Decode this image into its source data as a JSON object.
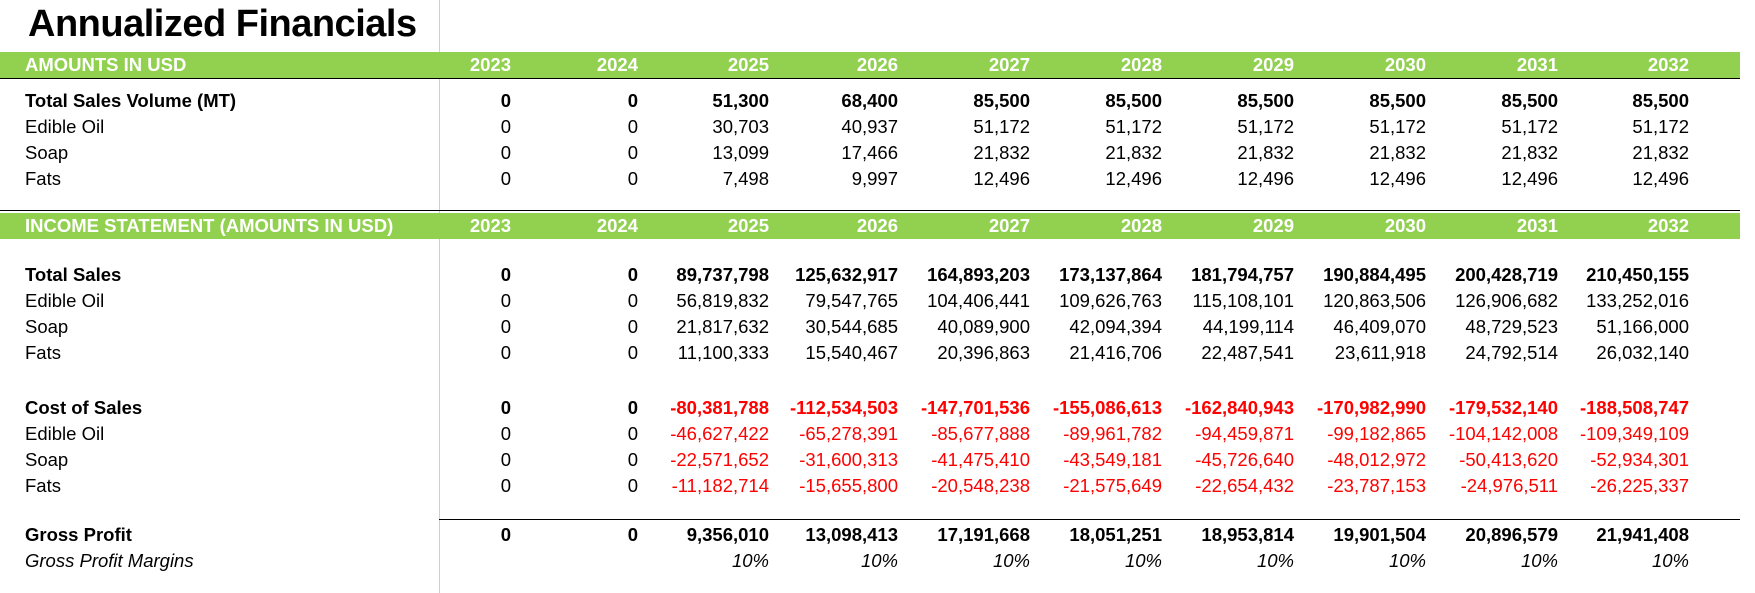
{
  "title": "Annualized Financials",
  "years": [
    "2023",
    "2024",
    "2025",
    "2026",
    "2027",
    "2028",
    "2029",
    "2030",
    "2031",
    "2032"
  ],
  "section1": {
    "header": "AMOUNTS IN USD",
    "rows": [
      {
        "label": "Total Sales Volume (MT)",
        "style": "bold",
        "values": [
          "0",
          "0",
          "51,300",
          "68,400",
          "85,500",
          "85,500",
          "85,500",
          "85,500",
          "85,500",
          "85,500"
        ]
      },
      {
        "label": "Edible Oil",
        "style": "normal",
        "values": [
          "0",
          "0",
          "30,703",
          "40,937",
          "51,172",
          "51,172",
          "51,172",
          "51,172",
          "51,172",
          "51,172"
        ]
      },
      {
        "label": "Soap",
        "style": "normal",
        "values": [
          "0",
          "0",
          "13,099",
          "17,466",
          "21,832",
          "21,832",
          "21,832",
          "21,832",
          "21,832",
          "21,832"
        ]
      },
      {
        "label": "Fats",
        "style": "normal",
        "values": [
          "0",
          "0",
          "7,498",
          "9,997",
          "12,496",
          "12,496",
          "12,496",
          "12,496",
          "12,496",
          "12,496"
        ]
      }
    ]
  },
  "section2": {
    "header": "INCOME STATEMENT (AMOUNTS IN USD)",
    "rows": [
      {
        "label": "Total Sales",
        "style": "bold",
        "values": [
          "0",
          "0",
          "89,737,798",
          "125,632,917",
          "164,893,203",
          "173,137,864",
          "181,794,757",
          "190,884,495",
          "200,428,719",
          "210,450,155"
        ]
      },
      {
        "label": "Edible Oil",
        "style": "normal",
        "values": [
          "0",
          "0",
          "56,819,832",
          "79,547,765",
          "104,406,441",
          "109,626,763",
          "115,108,101",
          "120,863,506",
          "126,906,682",
          "133,252,016"
        ]
      },
      {
        "label": "Soap",
        "style": "normal",
        "values": [
          "0",
          "0",
          "21,817,632",
          "30,544,685",
          "40,089,900",
          "42,094,394",
          "44,199,114",
          "46,409,070",
          "48,729,523",
          "51,166,000"
        ]
      },
      {
        "label": "Fats",
        "style": "normal",
        "values": [
          "0",
          "0",
          "11,100,333",
          "15,540,467",
          "20,396,863",
          "21,416,706",
          "22,487,541",
          "23,611,918",
          "24,792,514",
          "26,032,140"
        ]
      },
      {
        "label": "Cost of Sales",
        "style": "bold-red",
        "values": [
          "0",
          "0",
          "-80,381,788",
          "-112,534,503",
          "-147,701,536",
          "-155,086,613",
          "-162,840,943",
          "-170,982,990",
          "-179,532,140",
          "-188,508,747"
        ]
      },
      {
        "label": "Edible Oil",
        "style": "red",
        "values": [
          "0",
          "0",
          "-46,627,422",
          "-65,278,391",
          "-85,677,888",
          "-89,961,782",
          "-94,459,871",
          "-99,182,865",
          "-104,142,008",
          "-109,349,109"
        ]
      },
      {
        "label": "Soap",
        "style": "red",
        "values": [
          "0",
          "0",
          "-22,571,652",
          "-31,600,313",
          "-41,475,410",
          "-43,549,181",
          "-45,726,640",
          "-48,012,972",
          "-50,413,620",
          "-52,934,301"
        ]
      },
      {
        "label": "Fats",
        "style": "red",
        "values": [
          "0",
          "0",
          "-11,182,714",
          "-15,655,800",
          "-20,548,238",
          "-21,575,649",
          "-22,654,432",
          "-23,787,153",
          "-24,976,511",
          "-26,225,337"
        ]
      },
      {
        "label": "Gross Profit",
        "style": "bold",
        "values": [
          "0",
          "0",
          "9,356,010",
          "13,098,413",
          "17,191,668",
          "18,051,251",
          "18,953,814",
          "19,901,504",
          "20,896,579",
          "21,941,408"
        ]
      },
      {
        "label": "Gross Profit Margins",
        "style": "italic",
        "values": [
          "",
          "",
          "10%",
          "10%",
          "10%",
          "10%",
          "10%",
          "10%",
          "10%",
          "10%"
        ]
      }
    ]
  },
  "colors": {
    "band": "#92d050",
    "band_text": "#ffffff",
    "negative": "#ff0000"
  }
}
